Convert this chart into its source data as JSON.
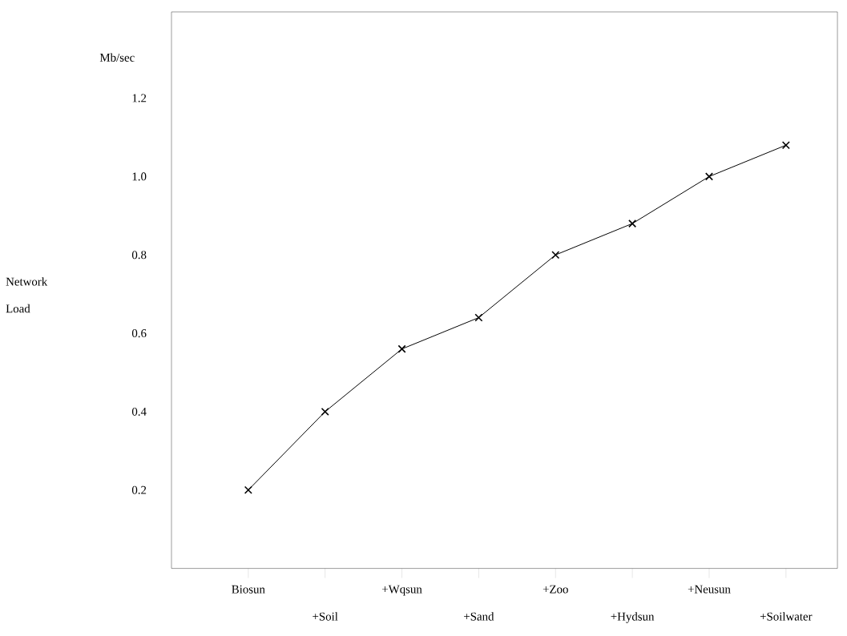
{
  "chart_data": {
    "type": "line",
    "ylabel": "Network Load",
    "annotations": [
      "Mb/sec"
    ],
    "categories": [
      "Biosun",
      "+Soil",
      "+Wqsun",
      "+Sand",
      "+Zoo",
      "+Hydsun",
      "+Neusun",
      "+Soilwater"
    ],
    "values": [
      0.2,
      0.4,
      0.56,
      0.64,
      0.8,
      0.88,
      1.0,
      1.08
    ],
    "color": "#000000",
    "marker": "cross",
    "line_style": "solid",
    "grid": false,
    "ylim": [
      0,
      1.42
    ],
    "yticks": [
      0.2,
      0.4,
      0.6,
      0.8,
      {
        "value": 1.0,
        "label": "1.0"
      },
      1.2
    ]
  }
}
